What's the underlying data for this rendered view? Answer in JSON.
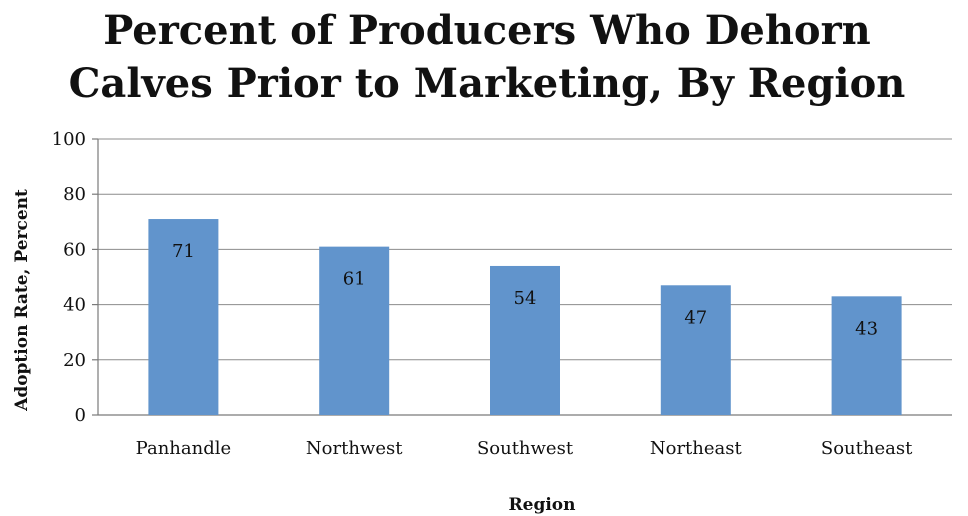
{
  "chart_data": {
    "type": "bar",
    "title_lines": [
      "Percent of Producers Who Dehorn",
      "Calves Prior to Marketing, By Region"
    ],
    "xlabel": "Region",
    "ylabel": "Adoption Rate, Percent",
    "categories": [
      "Panhandle",
      "Northwest",
      "Southwest",
      "Northeast",
      "Southeast"
    ],
    "values": [
      71,
      61,
      54,
      47,
      43
    ],
    "data_labels": [
      "71",
      "61",
      "54",
      "47",
      "43"
    ],
    "ylim": [
      0,
      100
    ],
    "yticks": [
      0,
      20,
      40,
      60,
      80,
      100
    ],
    "ytick_labels": [
      "0",
      "20",
      "40",
      "60",
      "80",
      "100"
    ],
    "grid": true,
    "bar_color": "#6194cc"
  }
}
